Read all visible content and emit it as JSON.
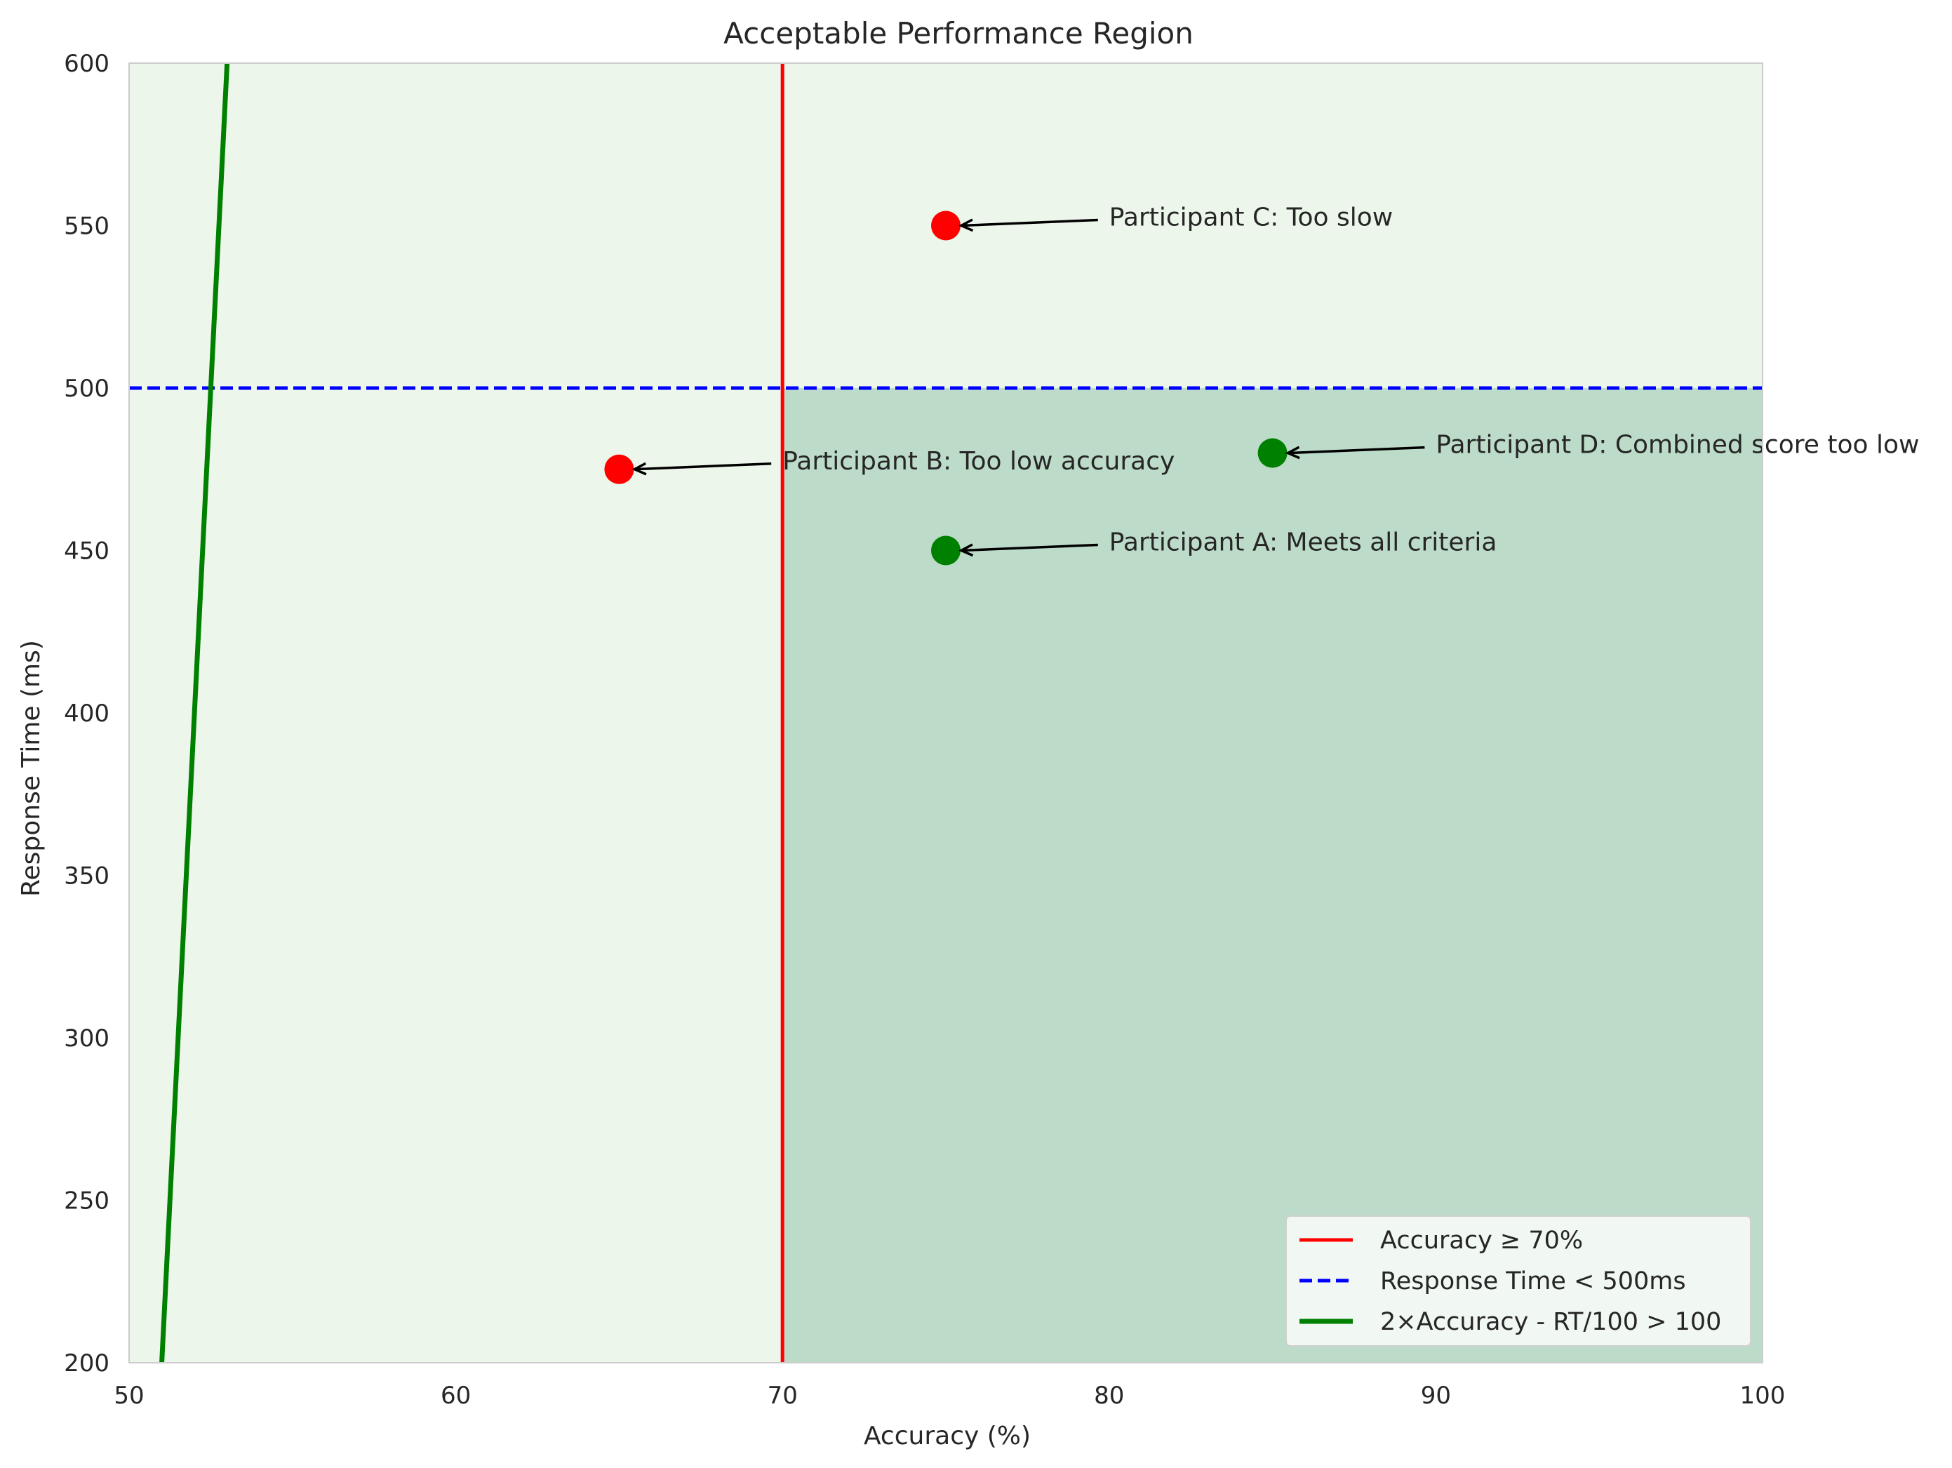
{
  "chart_data": {
    "type": "scatter",
    "title": "Acceptable Performance Region",
    "xlabel": "Accuracy (%)",
    "ylabel": "Response Time (ms)",
    "xlim": [
      50,
      100
    ],
    "ylim": [
      200,
      600
    ],
    "xticks": [
      50,
      60,
      70,
      80,
      90,
      100
    ],
    "yticks": [
      200,
      250,
      300,
      350,
      400,
      450,
      500,
      550,
      600
    ],
    "grid": false,
    "legend_position": "lower-right",
    "background_region": {
      "color": "#ecf6ea"
    },
    "acceptable_region": {
      "x_min": 70,
      "x_max": 100,
      "y_min": 200,
      "y_max": 500,
      "color": "#bddbc9"
    },
    "thresholds": [
      {
        "name": "Accuracy ≥ 70%",
        "kind": "vertical",
        "x": 70,
        "color": "#ff0000",
        "style": "solid"
      },
      {
        "name": "Response Time < 500ms",
        "kind": "horizontal",
        "y": 500,
        "color": "#0000ff",
        "style": "dashed"
      },
      {
        "name": "2×Accuracy - RT/100 > 100",
        "kind": "line",
        "points": [
          [
            51,
            200
          ],
          [
            53,
            600
          ]
        ],
        "color": "#008000",
        "style": "solid"
      }
    ],
    "points": [
      {
        "x": 75,
        "y": 450,
        "color": "#008000",
        "label": "Participant A: Meets all criteria",
        "text_x": 80,
        "text_y": 450
      },
      {
        "x": 65,
        "y": 475,
        "color": "#ff0000",
        "label": "Participant B: Too low accuracy",
        "text_x": 70,
        "text_y": 475
      },
      {
        "x": 75,
        "y": 550,
        "color": "#ff0000",
        "label": "Participant C: Too slow",
        "text_x": 80,
        "text_y": 550
      },
      {
        "x": 85,
        "y": 480,
        "color": "#008000",
        "label": "Participant D: Combined score too low",
        "text_x": 90,
        "text_y": 480
      }
    ]
  }
}
